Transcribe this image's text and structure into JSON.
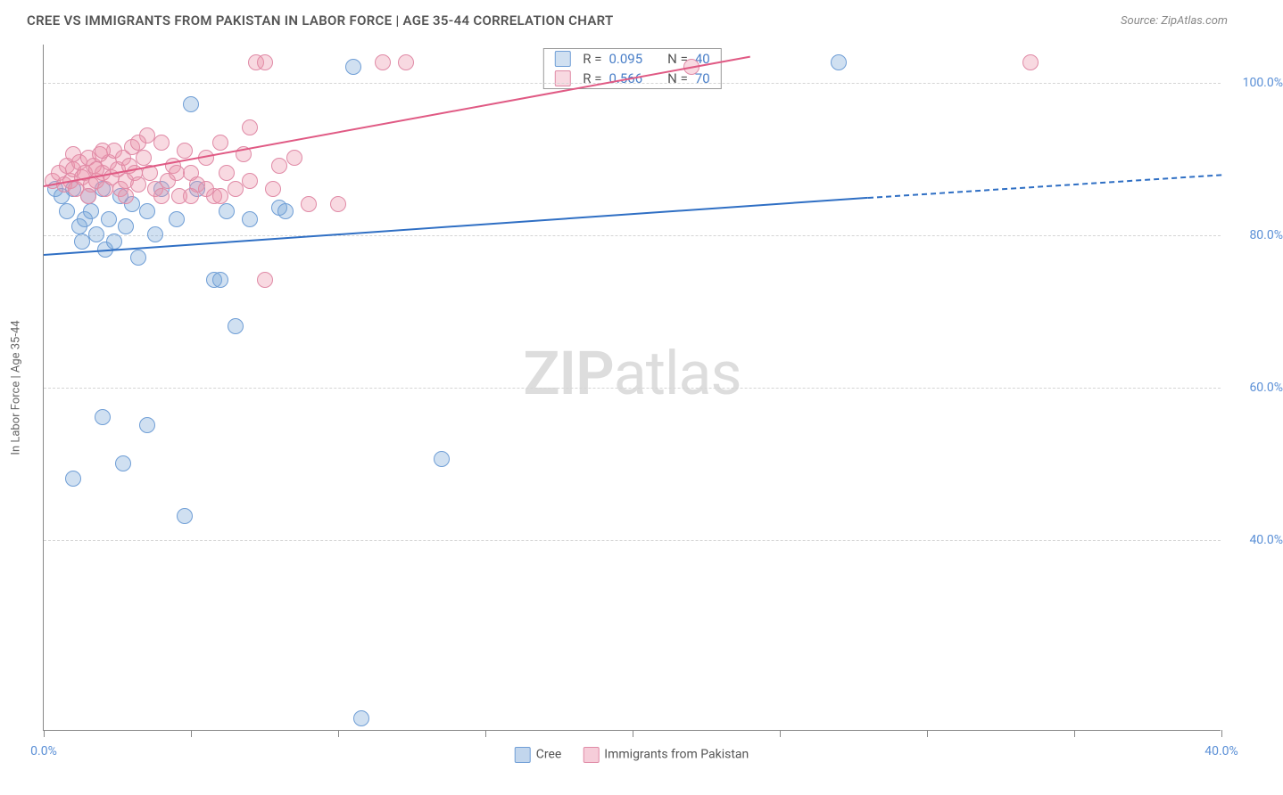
{
  "header": {
    "title": "CREE VS IMMIGRANTS FROM PAKISTAN IN LABOR FORCE | AGE 35-44 CORRELATION CHART",
    "source": "Source: ZipAtlas.com"
  },
  "chart": {
    "type": "scatter",
    "ylabel": "In Labor Force | Age 35-44",
    "xlim": [
      0,
      40
    ],
    "ylim": [
      15,
      105
    ],
    "x_ticks": [
      0,
      5,
      10,
      15,
      20,
      25,
      30,
      35,
      40
    ],
    "x_tick_labels": {
      "0": "0.0%",
      "40": "40.0%"
    },
    "y_gridlines": [
      40,
      60,
      80,
      100
    ],
    "y_tick_labels": {
      "40": "40.0%",
      "60": "60.0%",
      "80": "80.0%",
      "100": "100.0%"
    },
    "background_color": "#ffffff",
    "grid_color": "#d5d5d5",
    "axis_label_color": "#5a8fd6",
    "point_radius": 9,
    "series": [
      {
        "name": "Cree",
        "fill": "rgba(120,165,216,0.35)",
        "stroke": "#6f9ed6",
        "trend_color": "#2f6fc4",
        "R": "0.095",
        "N": "40",
        "trend": {
          "x1": 0,
          "y1": 77.5,
          "x2": 28,
          "y2": 85.0,
          "dash_x2": 40,
          "dash_y2": 88.0
        },
        "points": [
          [
            0.4,
            86
          ],
          [
            0.6,
            85
          ],
          [
            0.8,
            83
          ],
          [
            1.0,
            86
          ],
          [
            1.2,
            81
          ],
          [
            1.3,
            79
          ],
          [
            1.4,
            82
          ],
          [
            1.5,
            85
          ],
          [
            1.6,
            83
          ],
          [
            1.8,
            80
          ],
          [
            2.0,
            86
          ],
          [
            2.1,
            78
          ],
          [
            2.2,
            82
          ],
          [
            2.4,
            79
          ],
          [
            2.6,
            85
          ],
          [
            2.8,
            81
          ],
          [
            3.0,
            84
          ],
          [
            3.2,
            77
          ],
          [
            3.5,
            83
          ],
          [
            3.8,
            80
          ],
          [
            4.0,
            86
          ],
          [
            4.5,
            82
          ],
          [
            5.0,
            97
          ],
          [
            5.2,
            86
          ],
          [
            5.8,
            74
          ],
          [
            6.0,
            74
          ],
          [
            6.2,
            83
          ],
          [
            6.5,
            68
          ],
          [
            7.0,
            82
          ],
          [
            8.0,
            83.5
          ],
          [
            8.2,
            83
          ],
          [
            2.0,
            56
          ],
          [
            3.5,
            55
          ],
          [
            1.0,
            48
          ],
          [
            2.7,
            50
          ],
          [
            4.8,
            43
          ],
          [
            10.5,
            102
          ],
          [
            13.5,
            50.5
          ],
          [
            27.0,
            102.5
          ],
          [
            10.8,
            16.5
          ]
        ]
      },
      {
        "name": "Immigrants from Pakistan",
        "fill": "rgba(235,145,170,0.35)",
        "stroke": "#e08aa6",
        "trend_color": "#e05a84",
        "R": "0.566",
        "N": "70",
        "trend": {
          "x1": 0,
          "y1": 86.5,
          "x2": 24,
          "y2": 103.5
        },
        "points": [
          [
            0.3,
            87
          ],
          [
            0.5,
            88
          ],
          [
            0.7,
            86.5
          ],
          [
            0.8,
            89
          ],
          [
            0.9,
            87
          ],
          [
            1.0,
            88.5
          ],
          [
            1.1,
            86
          ],
          [
            1.2,
            89.5
          ],
          [
            1.3,
            87.5
          ],
          [
            1.4,
            88
          ],
          [
            1.5,
            90
          ],
          [
            1.6,
            86.5
          ],
          [
            1.7,
            89
          ],
          [
            1.8,
            87
          ],
          [
            1.9,
            90.5
          ],
          [
            2.0,
            88
          ],
          [
            2.1,
            86
          ],
          [
            2.2,
            89.5
          ],
          [
            2.3,
            87.5
          ],
          [
            2.4,
            91
          ],
          [
            2.5,
            88.5
          ],
          [
            2.6,
            86
          ],
          [
            2.7,
            90
          ],
          [
            2.8,
            87
          ],
          [
            2.9,
            89
          ],
          [
            3.0,
            91.5
          ],
          [
            3.1,
            88
          ],
          [
            3.2,
            86.5
          ],
          [
            3.4,
            90
          ],
          [
            3.5,
            93
          ],
          [
            3.6,
            88
          ],
          [
            3.8,
            86
          ],
          [
            4.0,
            92
          ],
          [
            4.2,
            87
          ],
          [
            4.4,
            89
          ],
          [
            4.6,
            85
          ],
          [
            4.8,
            91
          ],
          [
            5.0,
            88
          ],
          [
            5.2,
            86.5
          ],
          [
            5.5,
            90
          ],
          [
            5.8,
            85
          ],
          [
            6.0,
            92
          ],
          [
            6.2,
            88
          ],
          [
            6.5,
            86
          ],
          [
            6.8,
            90.5
          ],
          [
            7.0,
            94
          ],
          [
            7.2,
            102.5
          ],
          [
            7.5,
            102.5
          ],
          [
            8.0,
            89
          ],
          [
            8.5,
            90
          ],
          [
            9.0,
            84
          ],
          [
            10.0,
            84
          ],
          [
            11.5,
            102.5
          ],
          [
            12.3,
            102.5
          ],
          [
            22.0,
            102
          ],
          [
            7.0,
            87
          ],
          [
            7.8,
            86
          ],
          [
            4.0,
            85
          ],
          [
            5.0,
            85
          ],
          [
            1.0,
            90.5
          ],
          [
            1.5,
            85
          ],
          [
            2.0,
            91
          ],
          [
            2.8,
            85
          ],
          [
            3.2,
            92
          ],
          [
            4.5,
            88
          ],
          [
            5.5,
            86
          ],
          [
            6.0,
            85
          ],
          [
            7.5,
            74
          ],
          [
            33.5,
            102.5
          ],
          [
            1.8,
            88.5
          ]
        ]
      }
    ],
    "legend_bottom": [
      {
        "label": "Cree",
        "fill": "rgba(120,165,216,0.45)",
        "stroke": "#6f9ed6"
      },
      {
        "label": "Immigrants from Pakistan",
        "fill": "rgba(235,145,170,0.45)",
        "stroke": "#e08aa6"
      }
    ],
    "watermark": {
      "bold": "ZIP",
      "rest": "atlas"
    }
  }
}
